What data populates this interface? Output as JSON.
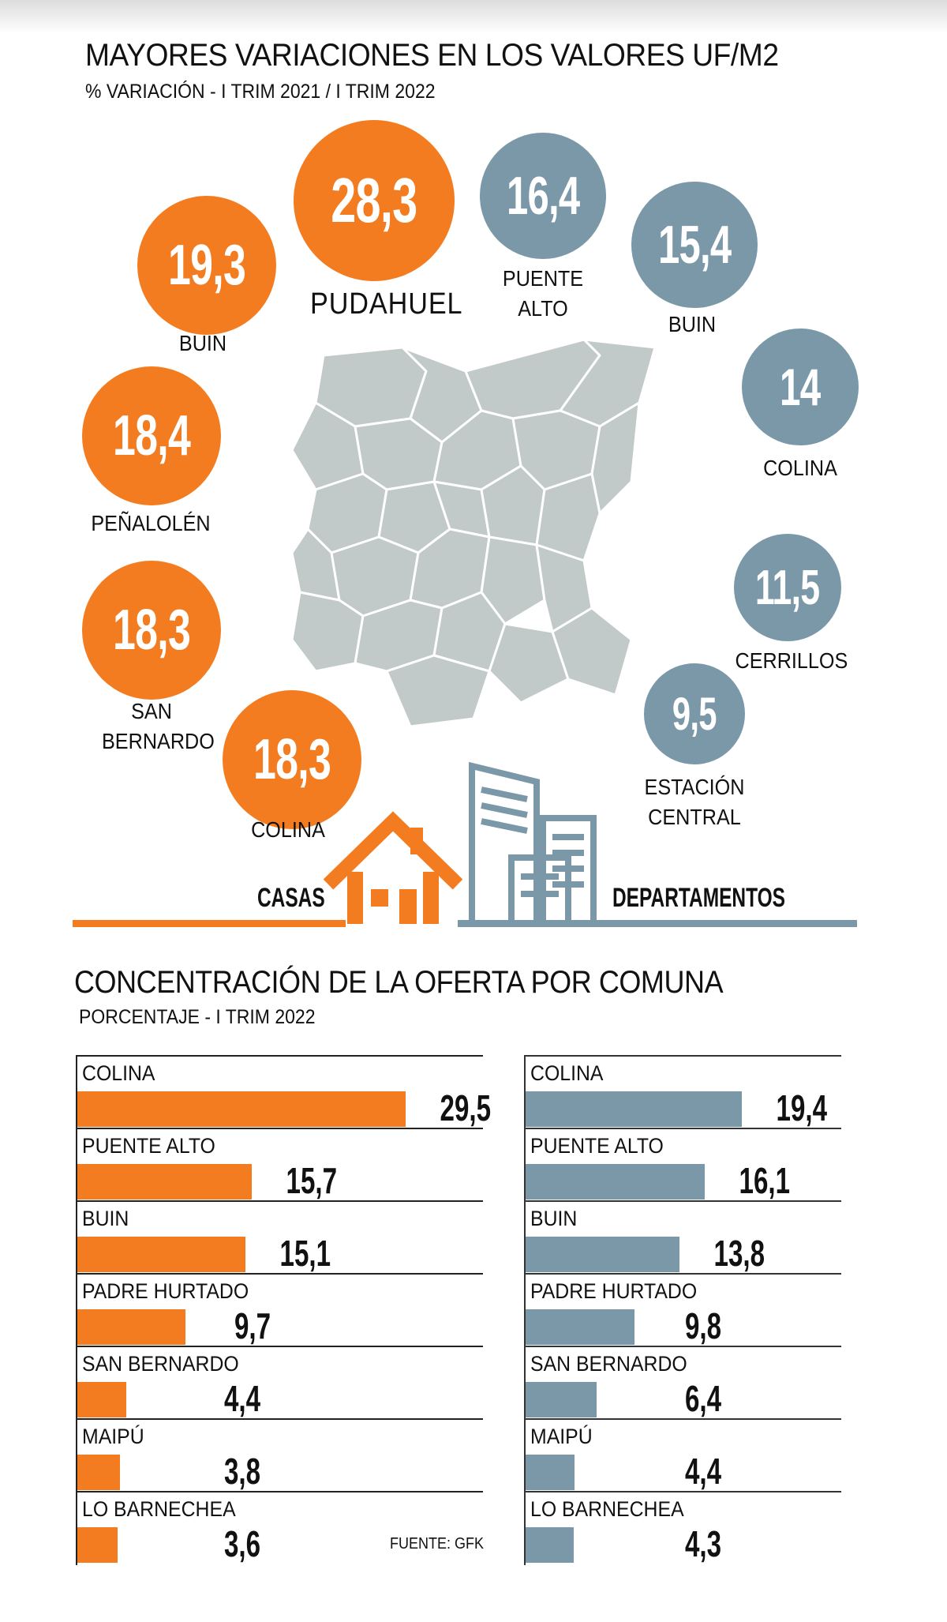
{
  "title": "MAYORES VARIACIONES EN LOS VALORES UF/M2",
  "subtitle": "% VARIACIÓN - I TRIM 2021 / I TRIM 2022",
  "colors": {
    "casas": "#f47c20",
    "departamentos": "#7b98a8",
    "map": "#c2c9c9"
  },
  "bubbles": {
    "casas": [
      {
        "value": "28,3",
        "label": "PUDAHUEL"
      },
      {
        "value": "19,3",
        "label": "BUIN"
      },
      {
        "value": "18,4",
        "label": "PEÑALOLÉN"
      },
      {
        "value": "18,3",
        "label_line1": "SAN",
        "label_line2": "BERNARDO"
      },
      {
        "value": "18,3",
        "label": "COLINA"
      }
    ],
    "departamentos": [
      {
        "value": "16,4",
        "label_line1": "PUENTE",
        "label_line2": "ALTO"
      },
      {
        "value": "15,4",
        "label": "BUIN"
      },
      {
        "value": "14",
        "label": "COLINA"
      },
      {
        "value": "11,5",
        "label": "CERRILLOS"
      },
      {
        "value": "9,5",
        "label_line1": "ESTACIÓN",
        "label_line2": "CENTRAL"
      }
    ]
  },
  "legend": {
    "casas": "CASAS",
    "departamentos": "DEPARTAMENTOS"
  },
  "title2": "CONCENTRACIÓN DE LA OFERTA POR COMUNA",
  "subtitle2": "PORCENTAJE - I TRIM 2022",
  "source": "FUENTE: GFK",
  "chart_data": [
    {
      "type": "bar",
      "title": "MAYORES VARIACIONES EN LOS VALORES UF/M2",
      "subtitle": "% VARIACIÓN - I TRIM 2021 / I TRIM 2022",
      "series": [
        {
          "name": "CASAS",
          "categories": [
            "PUDAHUEL",
            "BUIN",
            "PEÑALOLÉN",
            "SAN BERNARDO",
            "COLINA"
          ],
          "values": [
            28.3,
            19.3,
            18.4,
            18.3,
            18.3
          ]
        },
        {
          "name": "DEPARTAMENTOS",
          "categories": [
            "PUENTE ALTO",
            "BUIN",
            "COLINA",
            "CERRILLOS",
            "ESTACIÓN CENTRAL"
          ],
          "values": [
            16.4,
            15.4,
            14,
            11.5,
            9.5
          ]
        }
      ]
    },
    {
      "type": "bar",
      "title": "CONCENTRACIÓN DE LA OFERTA POR COMUNA",
      "subtitle": "PORCENTAJE - I TRIM 2022",
      "categories": [
        "COLINA",
        "PUENTE ALTO",
        "BUIN",
        "PADRE HURTADO",
        "SAN BERNARDO",
        "MAIPÚ",
        "LO BARNECHEA"
      ],
      "series": [
        {
          "name": "CASAS",
          "values": [
            29.5,
            15.7,
            15.1,
            9.7,
            4.4,
            3.8,
            3.6
          ],
          "labels": [
            "29,5",
            "15,7",
            "15,1",
            "9,7",
            "4,4",
            "3,8",
            "3,6"
          ]
        },
        {
          "name": "DEPARTAMENTOS",
          "values": [
            19.4,
            16.1,
            13.8,
            9.8,
            6.4,
            4.4,
            4.3
          ],
          "labels": [
            "19,4",
            "16,1",
            "13,8",
            "9,8",
            "6,4",
            "4,4",
            "4,3"
          ]
        }
      ]
    }
  ]
}
